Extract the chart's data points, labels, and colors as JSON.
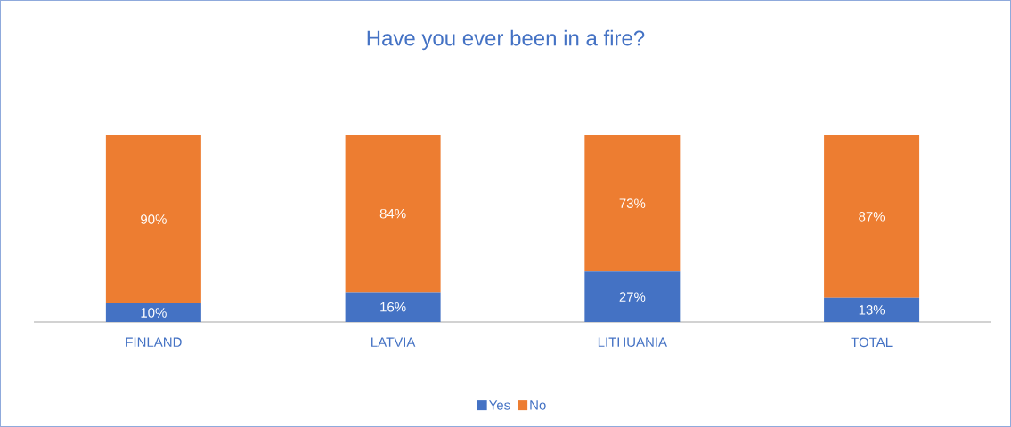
{
  "chart_data": {
    "type": "bar",
    "title": "Have you ever been in a fire?",
    "categories": [
      "FINLAND",
      "LATVIA",
      "LITHUANIA",
      "TOTAL"
    ],
    "stacked": true,
    "legend": "bottom",
    "series": [
      {
        "name": "Yes",
        "color": "#4472c4",
        "values": [
          10,
          16,
          27,
          13
        ],
        "value_labels": [
          "10%",
          "16%",
          "27%",
          "13%"
        ]
      },
      {
        "name": "No",
        "color": "#ed7d31",
        "values": [
          90,
          84,
          73,
          87
        ],
        "value_labels": [
          "90%",
          "84%",
          "73%",
          "87%"
        ]
      }
    ]
  }
}
